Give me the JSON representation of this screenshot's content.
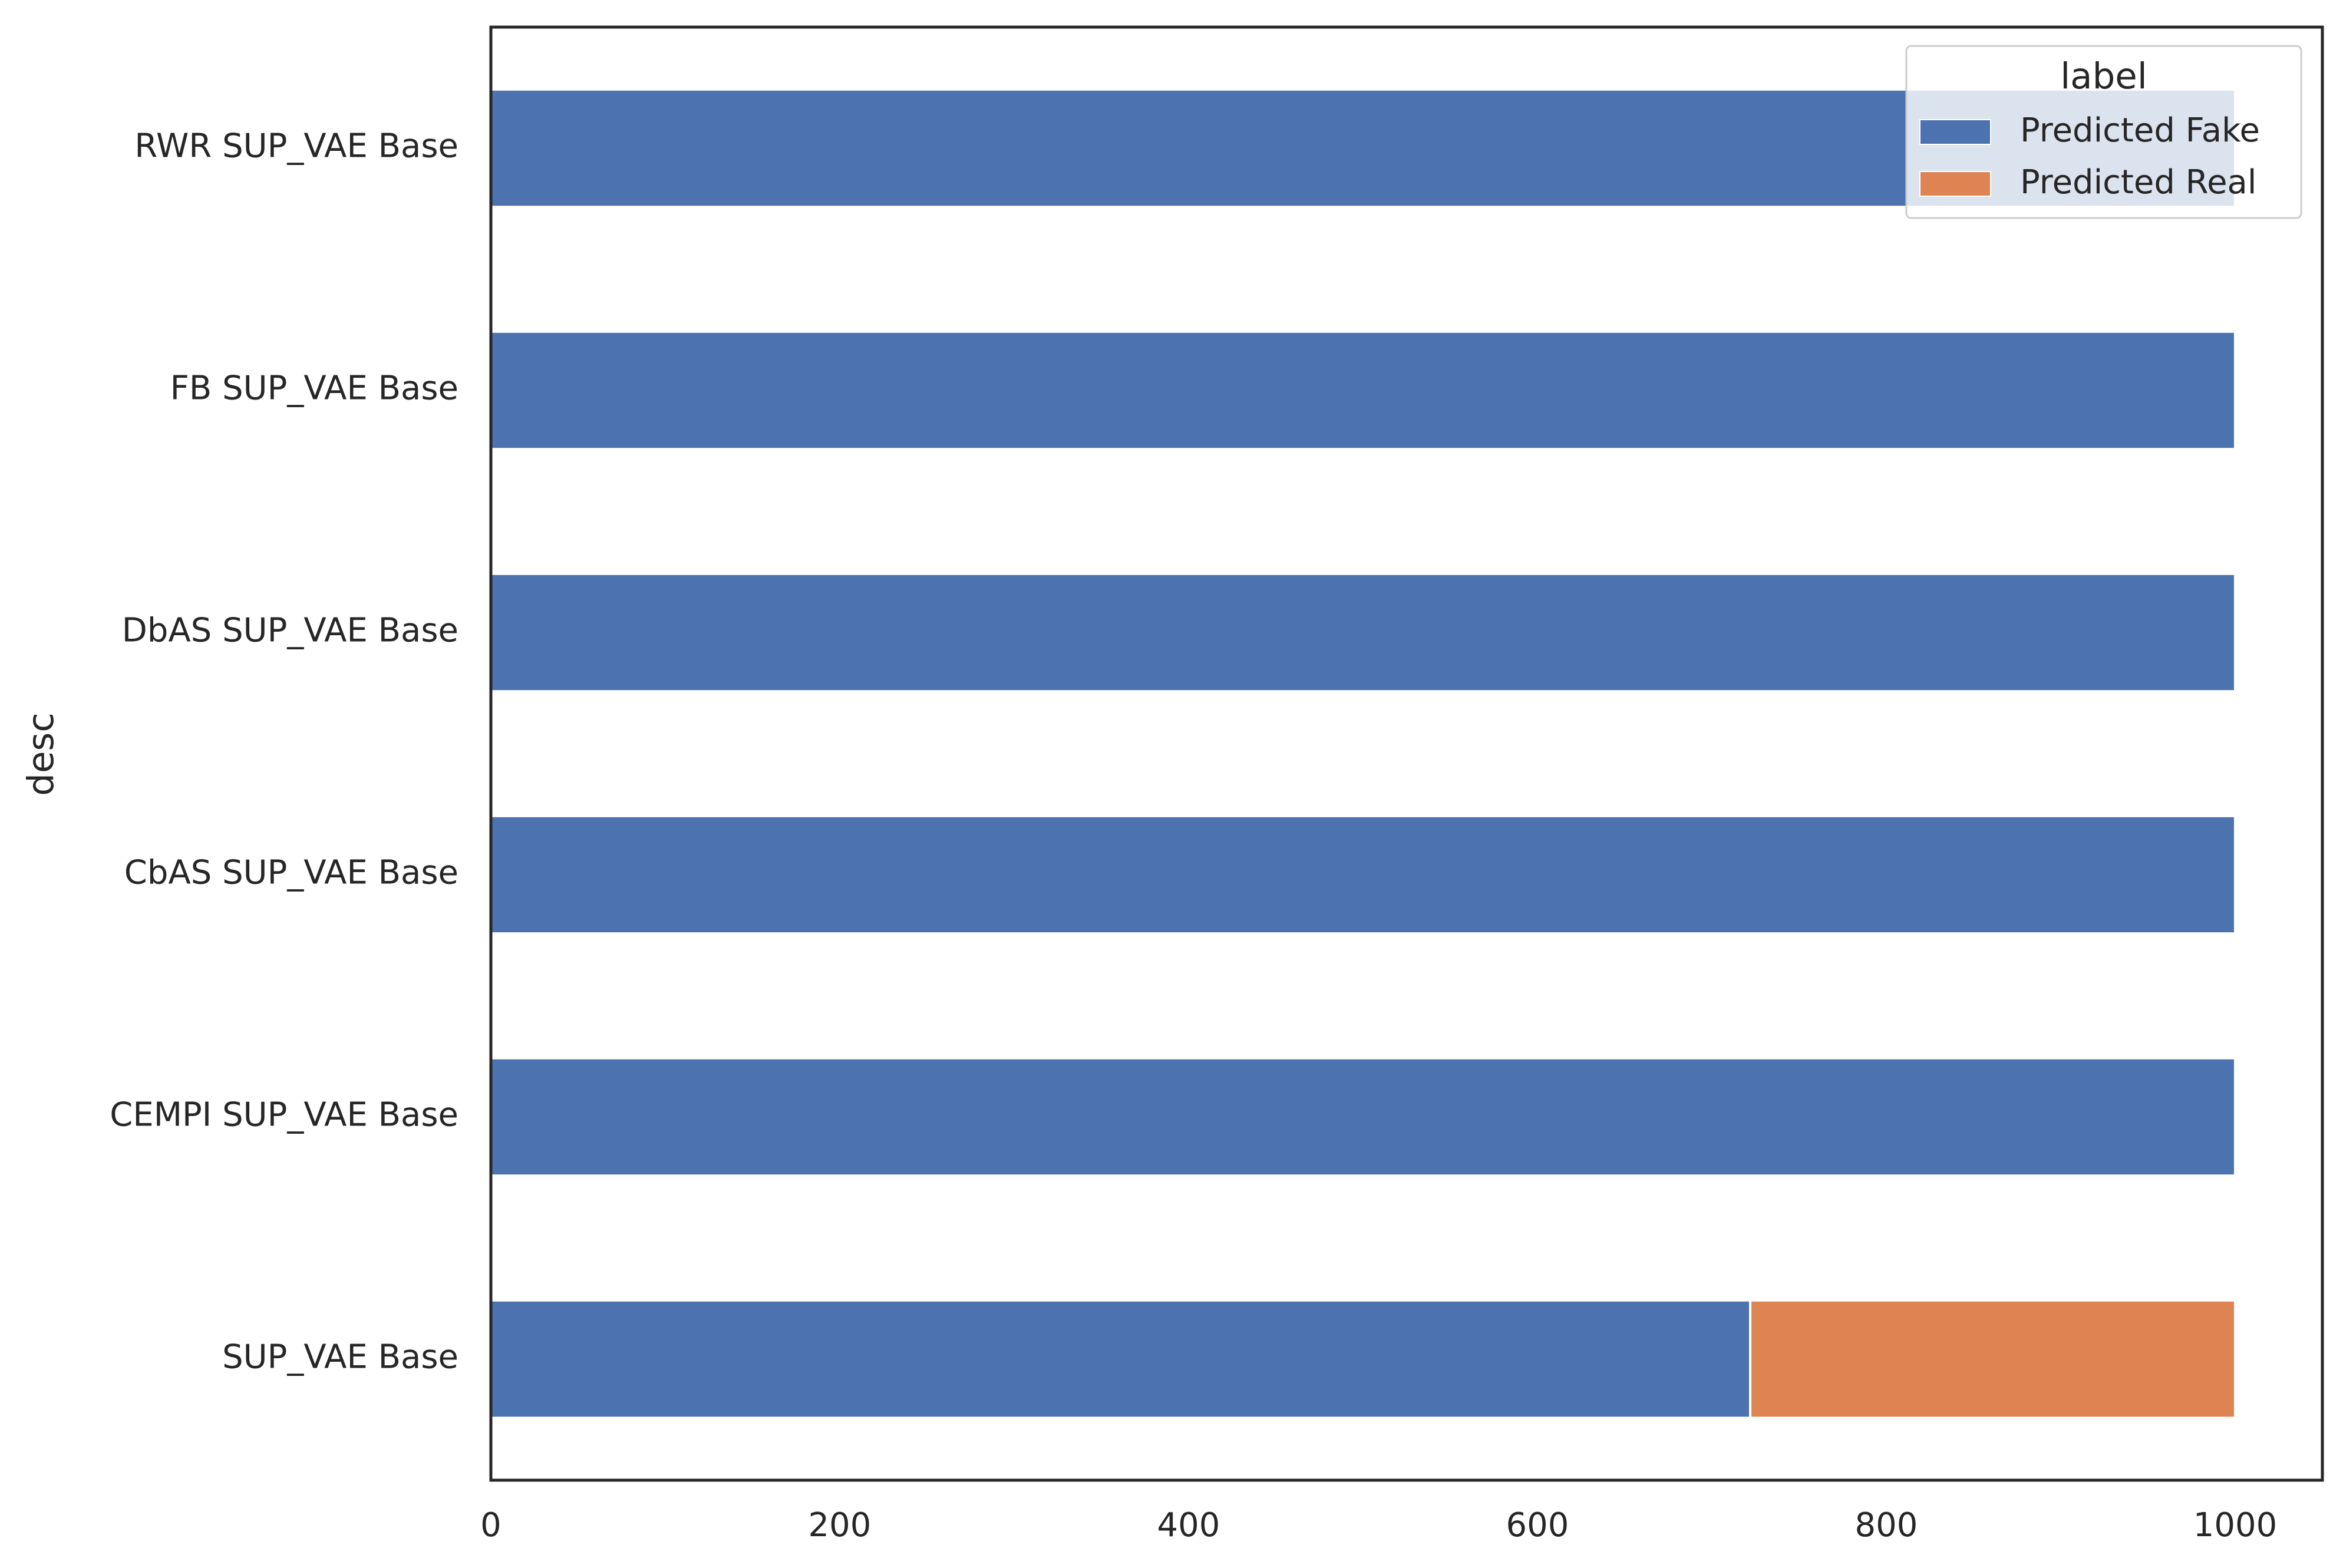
{
  "chart_data": {
    "type": "bar",
    "orientation": "horizontal",
    "stacked": true,
    "categories": [
      "RWR SUP_VAE Base",
      "FB SUP_VAE Base",
      "DbAS SUP_VAE Base",
      "CbAS SUP_VAE Base",
      "CEMPI SUP_VAE Base",
      "SUP_VAE Base"
    ],
    "series": [
      {
        "name": "Predicted Fake",
        "values": [
          1000,
          1000,
          1000,
          1000,
          1000,
          722
        ],
        "color": "#4c72b0"
      },
      {
        "name": "Predicted Real",
        "values": [
          0,
          0,
          0,
          0,
          0,
          278
        ],
        "color": "#dd8452"
      }
    ],
    "xlabel": "",
    "ylabel": "desc",
    "xlim": [
      0,
      1050
    ],
    "xticks": [
      0,
      200,
      400,
      600,
      800,
      1000
    ],
    "grid": false,
    "legend": {
      "title": "label",
      "placement": "top-right"
    }
  }
}
